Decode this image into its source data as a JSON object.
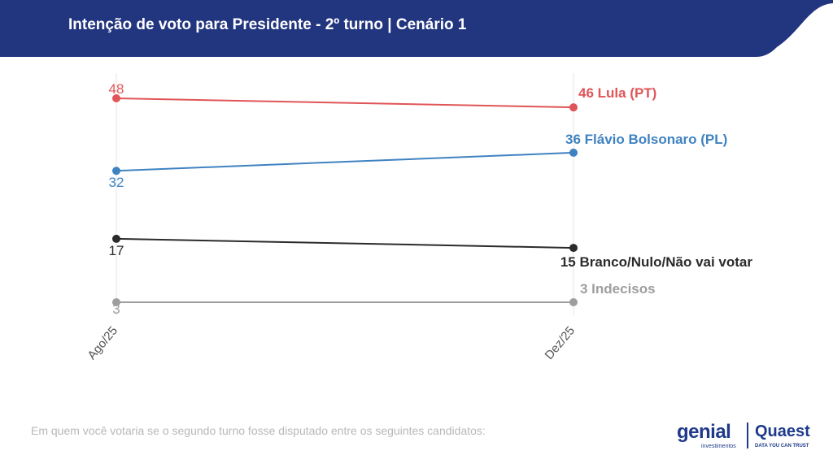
{
  "header": {
    "title": "Intenção de voto para Presidente - 2º turno | Cenário 1",
    "bg_color": "#22357f"
  },
  "footer": {
    "note": "Em quem você votaria se o segundo turno fosse disputado entre os seguintes candidatos:",
    "logo_genial": "genial",
    "logo_genial_sub": "investimentos",
    "logo_quaest": "Quaest",
    "logo_quaest_sub": "DATA YOU CAN TRUST"
  },
  "chart_data": {
    "type": "line",
    "title": "Intenção de voto para Presidente - 2º turno | Cenário 1",
    "xlabel": "",
    "ylabel": "",
    "x": [
      "Ago/25",
      "Dez/25"
    ],
    "ylim": [
      0,
      50
    ],
    "grid": "vertical",
    "series": [
      {
        "name": "Lula (PT)",
        "values": [
          48,
          46
        ],
        "color": "#e05557",
        "end_label": "46 Lula (PT)"
      },
      {
        "name": "Flávio Bolsonaro (PL)",
        "values": [
          32,
          36
        ],
        "color": "#3f82c1",
        "end_label": "36 Flávio Bolsonaro (PL)"
      },
      {
        "name": "Branco/Nulo/Não vai votar",
        "values": [
          17,
          15
        ],
        "color": "#2b2b2b",
        "end_label": "15 Branco/Nulo/Não vai votar"
      },
      {
        "name": "Indecisos",
        "values": [
          3,
          3
        ],
        "color": "#9e9e9e",
        "end_label": "3 Indecisos"
      }
    ]
  }
}
